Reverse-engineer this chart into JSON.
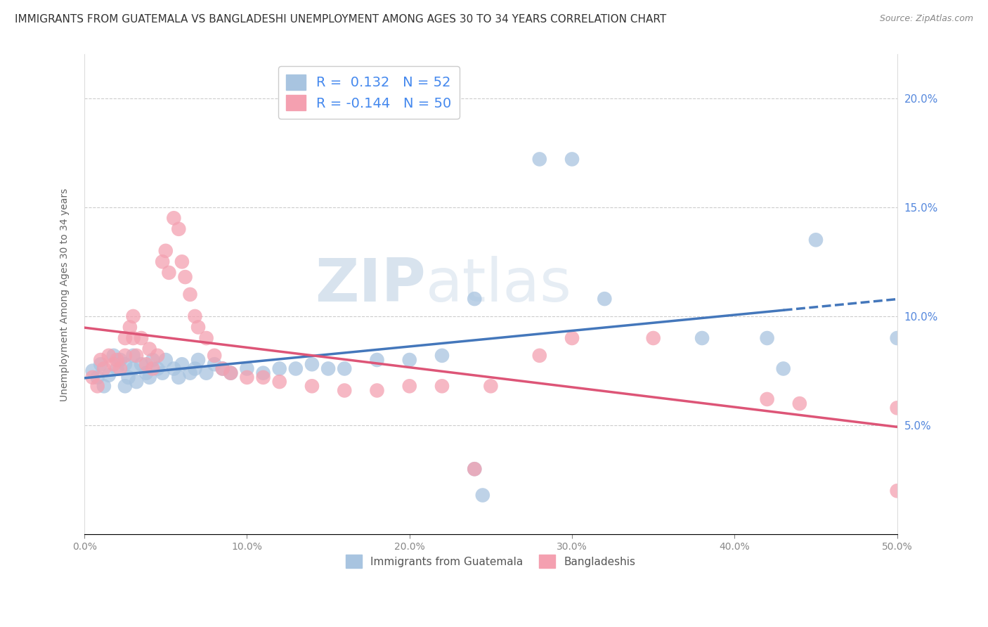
{
  "title": "IMMIGRANTS FROM GUATEMALA VS BANGLADESHI UNEMPLOYMENT AMONG AGES 30 TO 34 YEARS CORRELATION CHART",
  "source": "Source: ZipAtlas.com",
  "ylabel": "Unemployment Among Ages 30 to 34 years",
  "xlim": [
    0.0,
    0.5
  ],
  "ylim": [
    0.0,
    0.22
  ],
  "xticks": [
    0.0,
    0.1,
    0.2,
    0.3,
    0.4,
    0.5
  ],
  "xticklabels": [
    "0.0%",
    "10.0%",
    "20.0%",
    "30.0%",
    "40.0%",
    "50.0%"
  ],
  "yticks": [
    0.05,
    0.1,
    0.15,
    0.2
  ],
  "yticklabels": [
    "5.0%",
    "10.0%",
    "15.0%",
    "20.0%"
  ],
  "legend_label_blue": "Immigrants from Guatemala",
  "legend_label_pink": "Bangladeshis",
  "R_blue": 0.132,
  "N_blue": 52,
  "R_pink": -0.144,
  "N_pink": 50,
  "blue_color": "#a8c4e0",
  "pink_color": "#f4a0b0",
  "line_blue": "#4477bb",
  "line_pink": "#dd5577",
  "watermark_zip": "ZIP",
  "watermark_atlas": "atlas",
  "blue_points": [
    [
      0.005,
      0.075
    ],
    [
      0.008,
      0.072
    ],
    [
      0.01,
      0.078
    ],
    [
      0.012,
      0.068
    ],
    [
      0.015,
      0.073
    ],
    [
      0.018,
      0.082
    ],
    [
      0.02,
      0.076
    ],
    [
      0.022,
      0.08
    ],
    [
      0.025,
      0.078
    ],
    [
      0.025,
      0.068
    ],
    [
      0.027,
      0.072
    ],
    [
      0.03,
      0.082
    ],
    [
      0.03,
      0.076
    ],
    [
      0.032,
      0.07
    ],
    [
      0.035,
      0.078
    ],
    [
      0.038,
      0.074
    ],
    [
      0.04,
      0.072
    ],
    [
      0.042,
      0.08
    ],
    [
      0.045,
      0.076
    ],
    [
      0.048,
      0.074
    ],
    [
      0.05,
      0.08
    ],
    [
      0.055,
      0.076
    ],
    [
      0.058,
      0.072
    ],
    [
      0.06,
      0.078
    ],
    [
      0.065,
      0.074
    ],
    [
      0.068,
      0.076
    ],
    [
      0.07,
      0.08
    ],
    [
      0.075,
      0.074
    ],
    [
      0.08,
      0.078
    ],
    [
      0.085,
      0.076
    ],
    [
      0.09,
      0.074
    ],
    [
      0.1,
      0.076
    ],
    [
      0.11,
      0.074
    ],
    [
      0.12,
      0.076
    ],
    [
      0.13,
      0.076
    ],
    [
      0.14,
      0.078
    ],
    [
      0.15,
      0.076
    ],
    [
      0.16,
      0.076
    ],
    [
      0.18,
      0.08
    ],
    [
      0.2,
      0.08
    ],
    [
      0.22,
      0.082
    ],
    [
      0.24,
      0.108
    ],
    [
      0.28,
      0.172
    ],
    [
      0.3,
      0.172
    ],
    [
      0.32,
      0.108
    ],
    [
      0.38,
      0.09
    ],
    [
      0.42,
      0.09
    ],
    [
      0.43,
      0.076
    ],
    [
      0.45,
      0.135
    ],
    [
      0.24,
      0.03
    ],
    [
      0.245,
      0.018
    ],
    [
      0.5,
      0.09
    ]
  ],
  "pink_points": [
    [
      0.005,
      0.072
    ],
    [
      0.008,
      0.068
    ],
    [
      0.01,
      0.08
    ],
    [
      0.012,
      0.076
    ],
    [
      0.015,
      0.082
    ],
    [
      0.018,
      0.078
    ],
    [
      0.02,
      0.08
    ],
    [
      0.022,
      0.076
    ],
    [
      0.025,
      0.09
    ],
    [
      0.025,
      0.082
    ],
    [
      0.028,
      0.095
    ],
    [
      0.03,
      0.1
    ],
    [
      0.03,
      0.09
    ],
    [
      0.032,
      0.082
    ],
    [
      0.035,
      0.09
    ],
    [
      0.038,
      0.078
    ],
    [
      0.04,
      0.085
    ],
    [
      0.042,
      0.076
    ],
    [
      0.045,
      0.082
    ],
    [
      0.048,
      0.125
    ],
    [
      0.05,
      0.13
    ],
    [
      0.052,
      0.12
    ],
    [
      0.055,
      0.145
    ],
    [
      0.058,
      0.14
    ],
    [
      0.06,
      0.125
    ],
    [
      0.062,
      0.118
    ],
    [
      0.065,
      0.11
    ],
    [
      0.068,
      0.1
    ],
    [
      0.07,
      0.095
    ],
    [
      0.075,
      0.09
    ],
    [
      0.08,
      0.082
    ],
    [
      0.085,
      0.076
    ],
    [
      0.09,
      0.074
    ],
    [
      0.1,
      0.072
    ],
    [
      0.11,
      0.072
    ],
    [
      0.12,
      0.07
    ],
    [
      0.14,
      0.068
    ],
    [
      0.16,
      0.066
    ],
    [
      0.18,
      0.066
    ],
    [
      0.2,
      0.068
    ],
    [
      0.22,
      0.068
    ],
    [
      0.25,
      0.068
    ],
    [
      0.28,
      0.082
    ],
    [
      0.3,
      0.09
    ],
    [
      0.35,
      0.09
    ],
    [
      0.42,
      0.062
    ],
    [
      0.44,
      0.06
    ],
    [
      0.5,
      0.058
    ],
    [
      0.24,
      0.03
    ],
    [
      0.5,
      0.02
    ]
  ],
  "background_color": "#ffffff",
  "grid_color": "#cccccc",
  "title_fontsize": 11,
  "axis_label_fontsize": 10,
  "tick_fontsize": 10,
  "legend_fontsize": 14
}
